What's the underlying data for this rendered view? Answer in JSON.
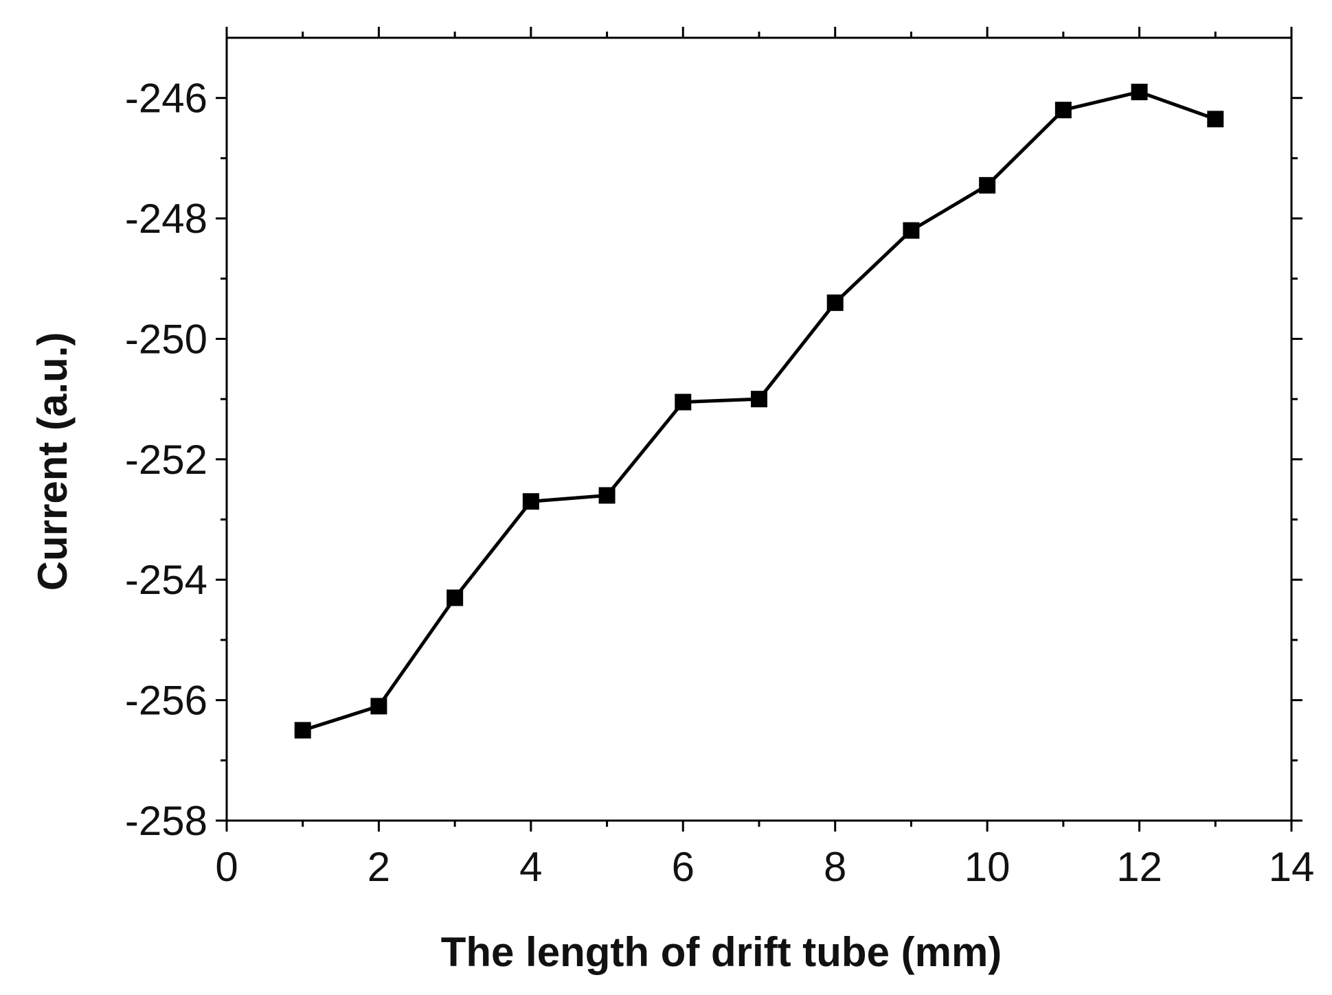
{
  "chart_data": {
    "type": "line",
    "title": "",
    "xlabel": "The length of drift tube (mm)",
    "ylabel": "Current (a.u.)",
    "xlim": [
      0,
      14
    ],
    "ylim": [
      -258,
      -245
    ],
    "x_ticks": [
      0,
      2,
      4,
      6,
      8,
      10,
      12,
      14
    ],
    "x_tick_labels": [
      "0",
      "2",
      "4",
      "6",
      "8",
      "10",
      "12",
      "14"
    ],
    "y_ticks": [
      -258,
      -256,
      -254,
      -252,
      -250,
      -248,
      -246
    ],
    "y_tick_labels": [
      "-258",
      "-256",
      "-254",
      "-252",
      "-250",
      "-248",
      "-246"
    ],
    "grid": false,
    "legend": "none",
    "series": [
      {
        "marker": "square",
        "color": "#000000",
        "x": [
          1,
          2,
          3,
          4,
          5,
          6,
          7,
          8,
          9,
          10,
          11,
          12,
          13
        ],
        "y": [
          -256.5,
          -256.1,
          -254.3,
          -252.7,
          -252.6,
          -251.05,
          -251.0,
          -249.4,
          -248.2,
          -247.45,
          -246.2,
          -245.9,
          -246.35
        ]
      }
    ]
  }
}
